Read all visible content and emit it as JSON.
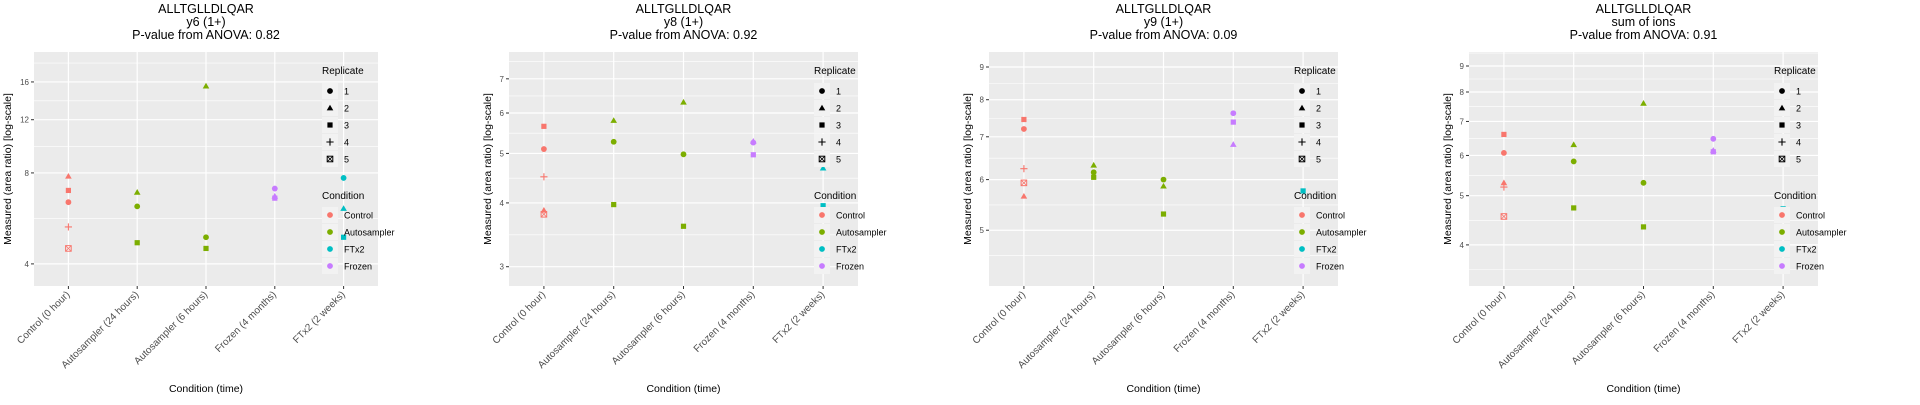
{
  "colors": {
    "Control": "#F8766D",
    "Autosampler": "#7CAE00",
    "FTx2": "#00BFC4",
    "Frozen": "#C77CFF",
    "panel_bg": "#EBEBEB",
    "grid": "#FFFFFF",
    "text": "#000000",
    "tick_text": "#4D4D4D"
  },
  "chart_data": [
    {
      "type": "scatter",
      "title": "ALLTGLLDLQAR",
      "subtitle": "y6 (1+)",
      "pvalue_label": "P-value from ANOVA: 0.82",
      "xlabel": "Condition (time)",
      "ylabel": "Measured (area ratio) [log-scale]",
      "yscale": "log",
      "ylim": [
        3.38,
        20.1
      ],
      "yticks": [
        4,
        8,
        12,
        16
      ],
      "ytick_labels": [
        "4",
        "8",
        "12",
        "16"
      ],
      "categories": [
        "Control (0 hour)",
        "Autosampler (24 hours)",
        "Autosampler (6 hours)",
        "Frozen (4 months)",
        "FTx2 (2 weeks)"
      ],
      "points": [
        {
          "x": "Control (0 hour)",
          "condition": "Control",
          "replicate": 2,
          "y": 7.8
        },
        {
          "x": "Control (0 hour)",
          "condition": "Control",
          "replicate": 3,
          "y": 7.0
        },
        {
          "x": "Control (0 hour)",
          "condition": "Control",
          "replicate": 1,
          "y": 6.4
        },
        {
          "x": "Control (0 hour)",
          "condition": "Control",
          "replicate": 4,
          "y": 5.3
        },
        {
          "x": "Control (0 hour)",
          "condition": "Control",
          "replicate": 5,
          "y": 4.5
        },
        {
          "x": "Autosampler (24 hours)",
          "condition": "Autosampler",
          "replicate": 2,
          "y": 6.9
        },
        {
          "x": "Autosampler (24 hours)",
          "condition": "Autosampler",
          "replicate": 1,
          "y": 6.2
        },
        {
          "x": "Autosampler (24 hours)",
          "condition": "Autosampler",
          "replicate": 3,
          "y": 4.7
        },
        {
          "x": "Autosampler (6 hours)",
          "condition": "Autosampler",
          "replicate": 2,
          "y": 15.5
        },
        {
          "x": "Autosampler (6 hours)",
          "condition": "Autosampler",
          "replicate": 1,
          "y": 4.9
        },
        {
          "x": "Autosampler (6 hours)",
          "condition": "Autosampler",
          "replicate": 3,
          "y": 4.5
        },
        {
          "x": "Frozen (4 months)",
          "condition": "Frozen",
          "replicate": 1,
          "y": 7.1
        },
        {
          "x": "Frozen (4 months)",
          "condition": "Frozen",
          "replicate": 2,
          "y": 6.7
        },
        {
          "x": "Frozen (4 months)",
          "condition": "Frozen",
          "replicate": 3,
          "y": 6.6
        },
        {
          "x": "FTx2 (2 weeks)",
          "condition": "FTx2",
          "replicate": 1,
          "y": 7.7
        },
        {
          "x": "FTx2 (2 weeks)",
          "condition": "FTx2",
          "replicate": 2,
          "y": 6.1
        },
        {
          "x": "FTx2 (2 weeks)",
          "condition": "FTx2",
          "replicate": 3,
          "y": 4.9
        }
      ],
      "legend": {
        "replicate_title": "Replicate",
        "replicates": [
          "1",
          "2",
          "3",
          "4",
          "5"
        ],
        "condition_title": "Condition",
        "conditions": [
          "Control",
          "Autosampler",
          "FTx2",
          "Frozen"
        ],
        "position": "right"
      }
    },
    {
      "type": "scatter",
      "title": "ALLTGLLDLQAR",
      "subtitle": "y8 (1+)",
      "pvalue_label": "P-value from ANOVA: 0.92",
      "xlabel": "Condition (time)",
      "ylabel": "Measured (area ratio) [log-scale]",
      "yscale": "log",
      "ylim": [
        2.75,
        7.9
      ],
      "yticks": [
        3,
        4,
        5,
        6,
        7
      ],
      "ytick_labels": [
        "3",
        "4",
        "5",
        "6",
        "7"
      ],
      "categories": [
        "Control (0 hour)",
        "Autosampler (24 hours)",
        "Autosampler (6 hours)",
        "Frozen (4 months)",
        "FTx2 (2 weeks)"
      ],
      "points": [
        {
          "x": "Control (0 hour)",
          "condition": "Control",
          "replicate": 3,
          "y": 5.65
        },
        {
          "x": "Control (0 hour)",
          "condition": "Control",
          "replicate": 1,
          "y": 5.1
        },
        {
          "x": "Control (0 hour)",
          "condition": "Control",
          "replicate": 4,
          "y": 4.5
        },
        {
          "x": "Control (0 hour)",
          "condition": "Control",
          "replicate": 2,
          "y": 3.87
        },
        {
          "x": "Control (0 hour)",
          "condition": "Control",
          "replicate": 5,
          "y": 3.8
        },
        {
          "x": "Autosampler (24 hours)",
          "condition": "Autosampler",
          "replicate": 2,
          "y": 5.8
        },
        {
          "x": "Autosampler (24 hours)",
          "condition": "Autosampler",
          "replicate": 1,
          "y": 5.27
        },
        {
          "x": "Autosampler (24 hours)",
          "condition": "Autosampler",
          "replicate": 3,
          "y": 3.97
        },
        {
          "x": "Autosampler (6 hours)",
          "condition": "Autosampler",
          "replicate": 2,
          "y": 6.3
        },
        {
          "x": "Autosampler (6 hours)",
          "condition": "Autosampler",
          "replicate": 1,
          "y": 4.98
        },
        {
          "x": "Autosampler (6 hours)",
          "condition": "Autosampler",
          "replicate": 3,
          "y": 3.6
        },
        {
          "x": "Frozen (4 months)",
          "condition": "Frozen",
          "replicate": 2,
          "y": 5.28
        },
        {
          "x": "Frozen (4 months)",
          "condition": "Frozen",
          "replicate": 1,
          "y": 5.25
        },
        {
          "x": "Frozen (4 months)",
          "condition": "Frozen",
          "replicate": 3,
          "y": 4.97
        },
        {
          "x": "FTx2 (2 weeks)",
          "condition": "FTx2",
          "replicate": 1,
          "y": 6.15
        },
        {
          "x": "FTx2 (2 weeks)",
          "condition": "FTx2",
          "replicate": 2,
          "y": 4.68
        },
        {
          "x": "FTx2 (2 weeks)",
          "condition": "FTx2",
          "replicate": 3,
          "y": 3.95
        }
      ],
      "legend": {
        "replicate_title": "Replicate",
        "replicates": [
          "1",
          "2",
          "3",
          "4",
          "5"
        ],
        "condition_title": "Condition",
        "conditions": [
          "Control",
          "Autosampler",
          "FTx2",
          "Frozen"
        ],
        "position": "right"
      }
    },
    {
      "type": "scatter",
      "title": "ALLTGLLDLQAR",
      "subtitle": "y9 (1+)",
      "pvalue_label": "P-value from ANOVA: 0.09",
      "xlabel": "Condition (time)",
      "ylabel": "Measured (area ratio) [log-scale]",
      "yscale": "log",
      "ylim": [
        4.09,
        9.5
      ],
      "yticks": [
        5,
        6,
        7,
        8,
        9
      ],
      "ytick_labels": [
        "5",
        "6",
        "7",
        "8",
        "9"
      ],
      "categories": [
        "Control (0 hour)",
        "Autosampler (24 hours)",
        "Autosampler (6 hours)",
        "Frozen (4 months)",
        "FTx2 (2 weeks)"
      ],
      "points": [
        {
          "x": "Control (0 hour)",
          "condition": "Control",
          "replicate": 3,
          "y": 7.45
        },
        {
          "x": "Control (0 hour)",
          "condition": "Control",
          "replicate": 1,
          "y": 7.2
        },
        {
          "x": "Control (0 hour)",
          "condition": "Control",
          "replicate": 4,
          "y": 6.24
        },
        {
          "x": "Control (0 hour)",
          "condition": "Control",
          "replicate": 5,
          "y": 5.93
        },
        {
          "x": "Control (0 hour)",
          "condition": "Control",
          "replicate": 2,
          "y": 5.65
        },
        {
          "x": "Autosampler (24 hours)",
          "condition": "Autosampler",
          "replicate": 2,
          "y": 6.32
        },
        {
          "x": "Autosampler (24 hours)",
          "condition": "Autosampler",
          "replicate": 1,
          "y": 6.16
        },
        {
          "x": "Autosampler (24 hours)",
          "condition": "Autosampler",
          "replicate": 3,
          "y": 6.05
        },
        {
          "x": "Autosampler (6 hours)",
          "condition": "Autosampler",
          "replicate": 1,
          "y": 6.0
        },
        {
          "x": "Autosampler (6 hours)",
          "condition": "Autosampler",
          "replicate": 2,
          "y": 5.86
        },
        {
          "x": "Autosampler (6 hours)",
          "condition": "Autosampler",
          "replicate": 3,
          "y": 5.3
        },
        {
          "x": "Frozen (4 months)",
          "condition": "Frozen",
          "replicate": 1,
          "y": 7.62
        },
        {
          "x": "Frozen (4 months)",
          "condition": "Frozen",
          "replicate": 3,
          "y": 7.38
        },
        {
          "x": "Frozen (4 months)",
          "condition": "Frozen",
          "replicate": 2,
          "y": 6.81
        },
        {
          "x": "FTx2 (2 weeks)",
          "condition": "FTx2",
          "replicate": 1,
          "y": 7.43
        },
        {
          "x": "FTx2 (2 weeks)",
          "condition": "FTx2",
          "replicate": 2,
          "y": 7.28
        },
        {
          "x": "FTx2 (2 weeks)",
          "condition": "FTx2",
          "replicate": 3,
          "y": 5.76
        }
      ],
      "legend": {
        "replicate_title": "Replicate",
        "replicates": [
          "1",
          "2",
          "3",
          "4",
          "5"
        ],
        "condition_title": "Condition",
        "conditions": [
          "Control",
          "Autosampler",
          "FTx2",
          "Frozen"
        ],
        "position": "right"
      }
    },
    {
      "type": "scatter",
      "title": "ALLTGLLDLQAR",
      "subtitle": "sum of ions",
      "pvalue_label": "P-value from ANOVA: 0.91",
      "xlabel": "Condition (time)",
      "ylabel": "Measured (area ratio) [log-scale]",
      "yscale": "log",
      "ylim": [
        3.32,
        9.59
      ],
      "yticks": [
        4,
        5,
        6,
        7,
        8,
        9
      ],
      "ytick_labels": [
        "4",
        "5",
        "6",
        "7",
        "8",
        "9"
      ],
      "categories": [
        "Control (0 hour)",
        "Autosampler (24 hours)",
        "Autosampler (6 hours)",
        "Frozen (4 months)",
        "FTx2 (2 weeks)"
      ],
      "points": [
        {
          "x": "Control (0 hour)",
          "condition": "Control",
          "replicate": 3,
          "y": 6.6
        },
        {
          "x": "Control (0 hour)",
          "condition": "Control",
          "replicate": 1,
          "y": 6.07
        },
        {
          "x": "Control (0 hour)",
          "condition": "Control",
          "replicate": 2,
          "y": 5.3
        },
        {
          "x": "Control (0 hour)",
          "condition": "Control",
          "replicate": 4,
          "y": 5.2
        },
        {
          "x": "Control (0 hour)",
          "condition": "Control",
          "replicate": 5,
          "y": 4.55
        },
        {
          "x": "Autosampler (24 hours)",
          "condition": "Autosampler",
          "replicate": 2,
          "y": 6.3
        },
        {
          "x": "Autosampler (24 hours)",
          "condition": "Autosampler",
          "replicate": 1,
          "y": 5.84
        },
        {
          "x": "Autosampler (24 hours)",
          "condition": "Autosampler",
          "replicate": 3,
          "y": 4.73
        },
        {
          "x": "Autosampler (6 hours)",
          "condition": "Autosampler",
          "replicate": 2,
          "y": 7.6
        },
        {
          "x": "Autosampler (6 hours)",
          "condition": "Autosampler",
          "replicate": 1,
          "y": 5.3
        },
        {
          "x": "Autosampler (6 hours)",
          "condition": "Autosampler",
          "replicate": 3,
          "y": 4.34
        },
        {
          "x": "Frozen (4 months)",
          "condition": "Frozen",
          "replicate": 1,
          "y": 6.47
        },
        {
          "x": "Frozen (4 months)",
          "condition": "Frozen",
          "replicate": 2,
          "y": 6.14
        },
        {
          "x": "Frozen (4 months)",
          "condition": "Frozen",
          "replicate": 3,
          "y": 6.1
        },
        {
          "x": "FTx2 (2 weeks)",
          "condition": "FTx2",
          "replicate": 1,
          "y": 6.97
        },
        {
          "x": "FTx2 (2 weeks)",
          "condition": "FTx2",
          "replicate": 2,
          "y": 5.83
        },
        {
          "x": "FTx2 (2 weeks)",
          "condition": "FTx2",
          "replicate": 3,
          "y": 4.71
        }
      ],
      "legend": {
        "replicate_title": "Replicate",
        "replicates": [
          "1",
          "2",
          "3",
          "4",
          "5"
        ],
        "condition_title": "Condition",
        "conditions": [
          "Control",
          "Autosampler",
          "FTx2",
          "Frozen"
        ],
        "position": "right"
      }
    }
  ]
}
